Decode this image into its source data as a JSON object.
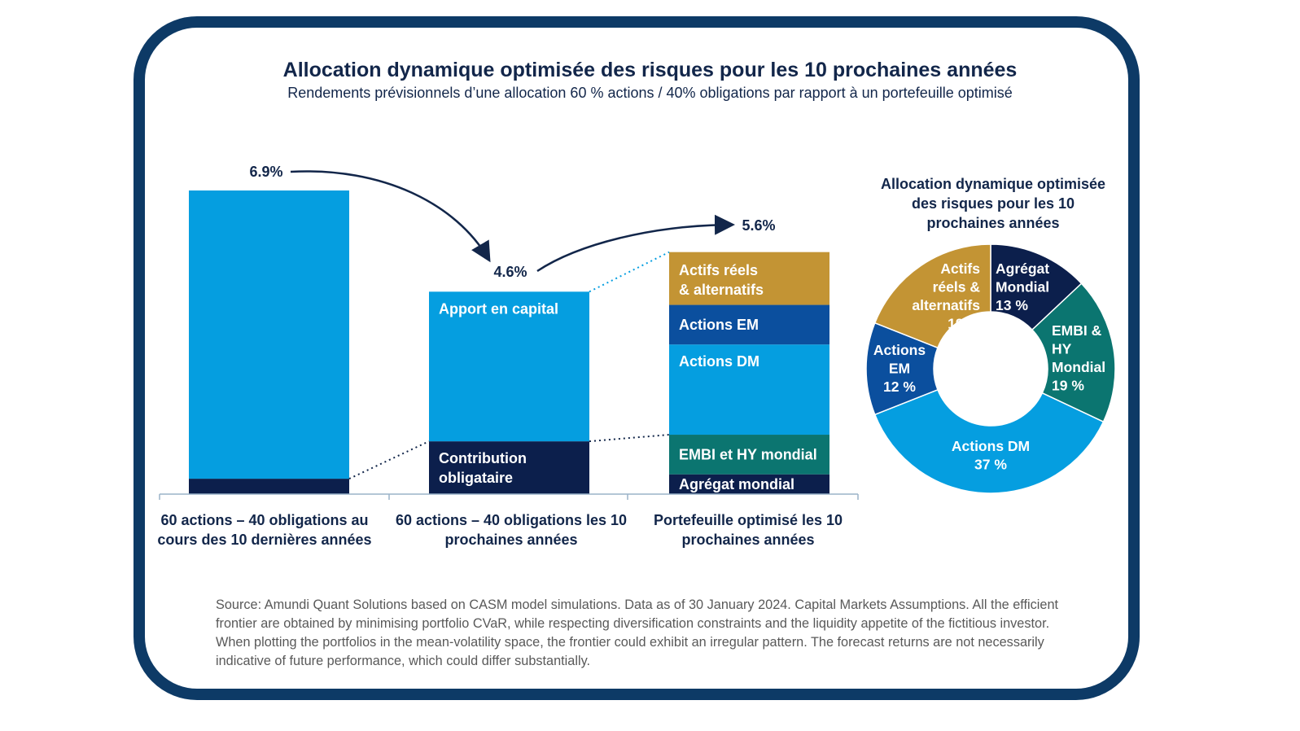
{
  "title": "Allocation dynamique optimisée des risques pour les 10 prochaines années",
  "subtitle": "Rendements prévisionnels d’une allocation 60 % actions / 40% obligations par rapport à un portefeuille optimisé",
  "source": "Source: Amundi Quant Solutions based on CASM model simulations. Data as of 30 January 2024. Capital Markets Assumptions. All the efficient frontier are obtained by minimising portfolio CVaR, while respecting diversification constraints and the liquidity appetite of the fictitious investor. When plotting the portfolios in the mean-volatility space, the frontier could exhibit an irregular pattern. The forecast returns are not necessarily indicative of future performance, which could differ substantially.",
  "colors": {
    "frame": "#0d3a66",
    "light_blue": "#059ee0",
    "navy": "#0c1f4c",
    "em_blue": "#0b4f9e",
    "teal": "#0b7570",
    "gold": "#c39434",
    "text": "#12264a"
  },
  "chart_data": [
    {
      "type": "bar",
      "stacked": true,
      "categories": [
        "60 actions – 40 obligations au cours des 10 dernières années",
        "60 actions – 40 obligations les 10 prochaines années",
        "Portefeuille optimisé les 10 prochaines années"
      ],
      "totals": [
        6.9,
        4.6,
        5.6
      ],
      "total_labels": [
        "6.9%",
        "4.6%",
        "5.6%"
      ],
      "bars": [
        {
          "segments": [
            {
              "label": "",
              "value": 0.35,
              "color": "#0c1f4c"
            },
            {
              "label": "",
              "value": 6.55,
              "color": "#059ee0"
            }
          ]
        },
        {
          "segments": [
            {
              "label": "Contribution obligataire",
              "value": 1.2,
              "color": "#0c1f4c"
            },
            {
              "label": "Apport en capital",
              "value": 3.4,
              "color": "#059ee0"
            }
          ]
        },
        {
          "segments": [
            {
              "label": "Agrégat mondial",
              "value": 0.45,
              "color": "#0c1f4c"
            },
            {
              "label": "EMBI et HY mondial",
              "value": 0.9,
              "color": "#0b7570"
            },
            {
              "label": "Actions DM",
              "value": 2.05,
              "color": "#059ee0"
            },
            {
              "label": "Actions EM",
              "value": 0.9,
              "color": "#0b4f9e"
            },
            {
              "label": "Actifs réels & alternatifs",
              "value": 1.2,
              "color": "#c39434"
            }
          ]
        }
      ],
      "ylim": [
        0,
        6.9
      ]
    },
    {
      "type": "pie",
      "donut": true,
      "title": "Allocation dynamique optimisée des risques pour les 10 prochaines années",
      "slices": [
        {
          "label": "Agrégat Mondial",
          "value": 13,
          "text": "13 %",
          "color": "#0c1f4c"
        },
        {
          "label": "EMBI & HY Mondial",
          "value": 19,
          "text": "19 %",
          "color": "#0b7570"
        },
        {
          "label": "Actions DM",
          "value": 37,
          "text": "37 %",
          "color": "#059ee0"
        },
        {
          "label": "Actions EM",
          "value": 12,
          "text": "12 %",
          "color": "#0b4f9e"
        },
        {
          "label": "Actifs réels & alternatifs",
          "value": 19,
          "text": "19 %",
          "color": "#c39434"
        }
      ]
    }
  ]
}
